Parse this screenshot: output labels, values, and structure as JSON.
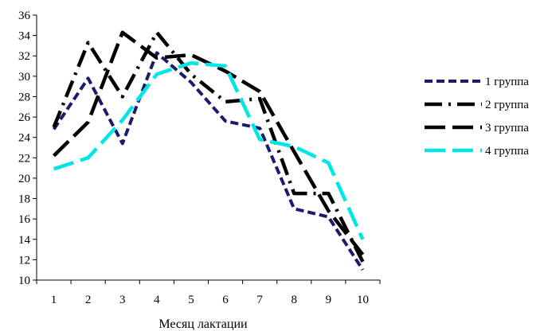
{
  "chart_data": {
    "type": "line",
    "title": "",
    "xlabel": "Месяц лактации",
    "ylabel": "",
    "x": [
      1,
      2,
      3,
      4,
      5,
      6,
      7,
      8,
      9,
      10
    ],
    "x_tick_labels": [
      "1",
      "2",
      "3",
      "4",
      "5",
      "6",
      "7",
      "8",
      "9",
      "10"
    ],
    "ylim": [
      10,
      36
    ],
    "y_ticks": [
      10,
      12,
      14,
      16,
      18,
      20,
      22,
      24,
      26,
      28,
      30,
      32,
      34,
      36
    ],
    "grid": false,
    "legend_position": "right",
    "series": [
      {
        "name": "1 группа",
        "color": "#1a1a6e",
        "style": "dashed",
        "values": [
          24.8,
          29.8,
          23.4,
          32.3,
          29.4,
          25.6,
          24.9,
          17.0,
          16.2,
          11.0
        ]
      },
      {
        "name": "2 группа",
        "color": "#000000",
        "style": "dash-dot",
        "values": [
          25.0,
          33.3,
          28.0,
          34.3,
          30.2,
          27.5,
          27.8,
          18.5,
          18.5,
          11.8
        ]
      },
      {
        "name": "3 группа",
        "color": "#000000",
        "style": "long-dash",
        "values": [
          22.2,
          25.5,
          34.3,
          31.8,
          32.1,
          30.5,
          28.5,
          22.6,
          16.8,
          12.5
        ]
      },
      {
        "name": "4 группа",
        "color": "#00e5e5",
        "style": "long-dash",
        "values": [
          20.9,
          22.0,
          25.7,
          30.2,
          31.3,
          31.0,
          23.8,
          23.1,
          21.5,
          14.0
        ]
      }
    ]
  }
}
